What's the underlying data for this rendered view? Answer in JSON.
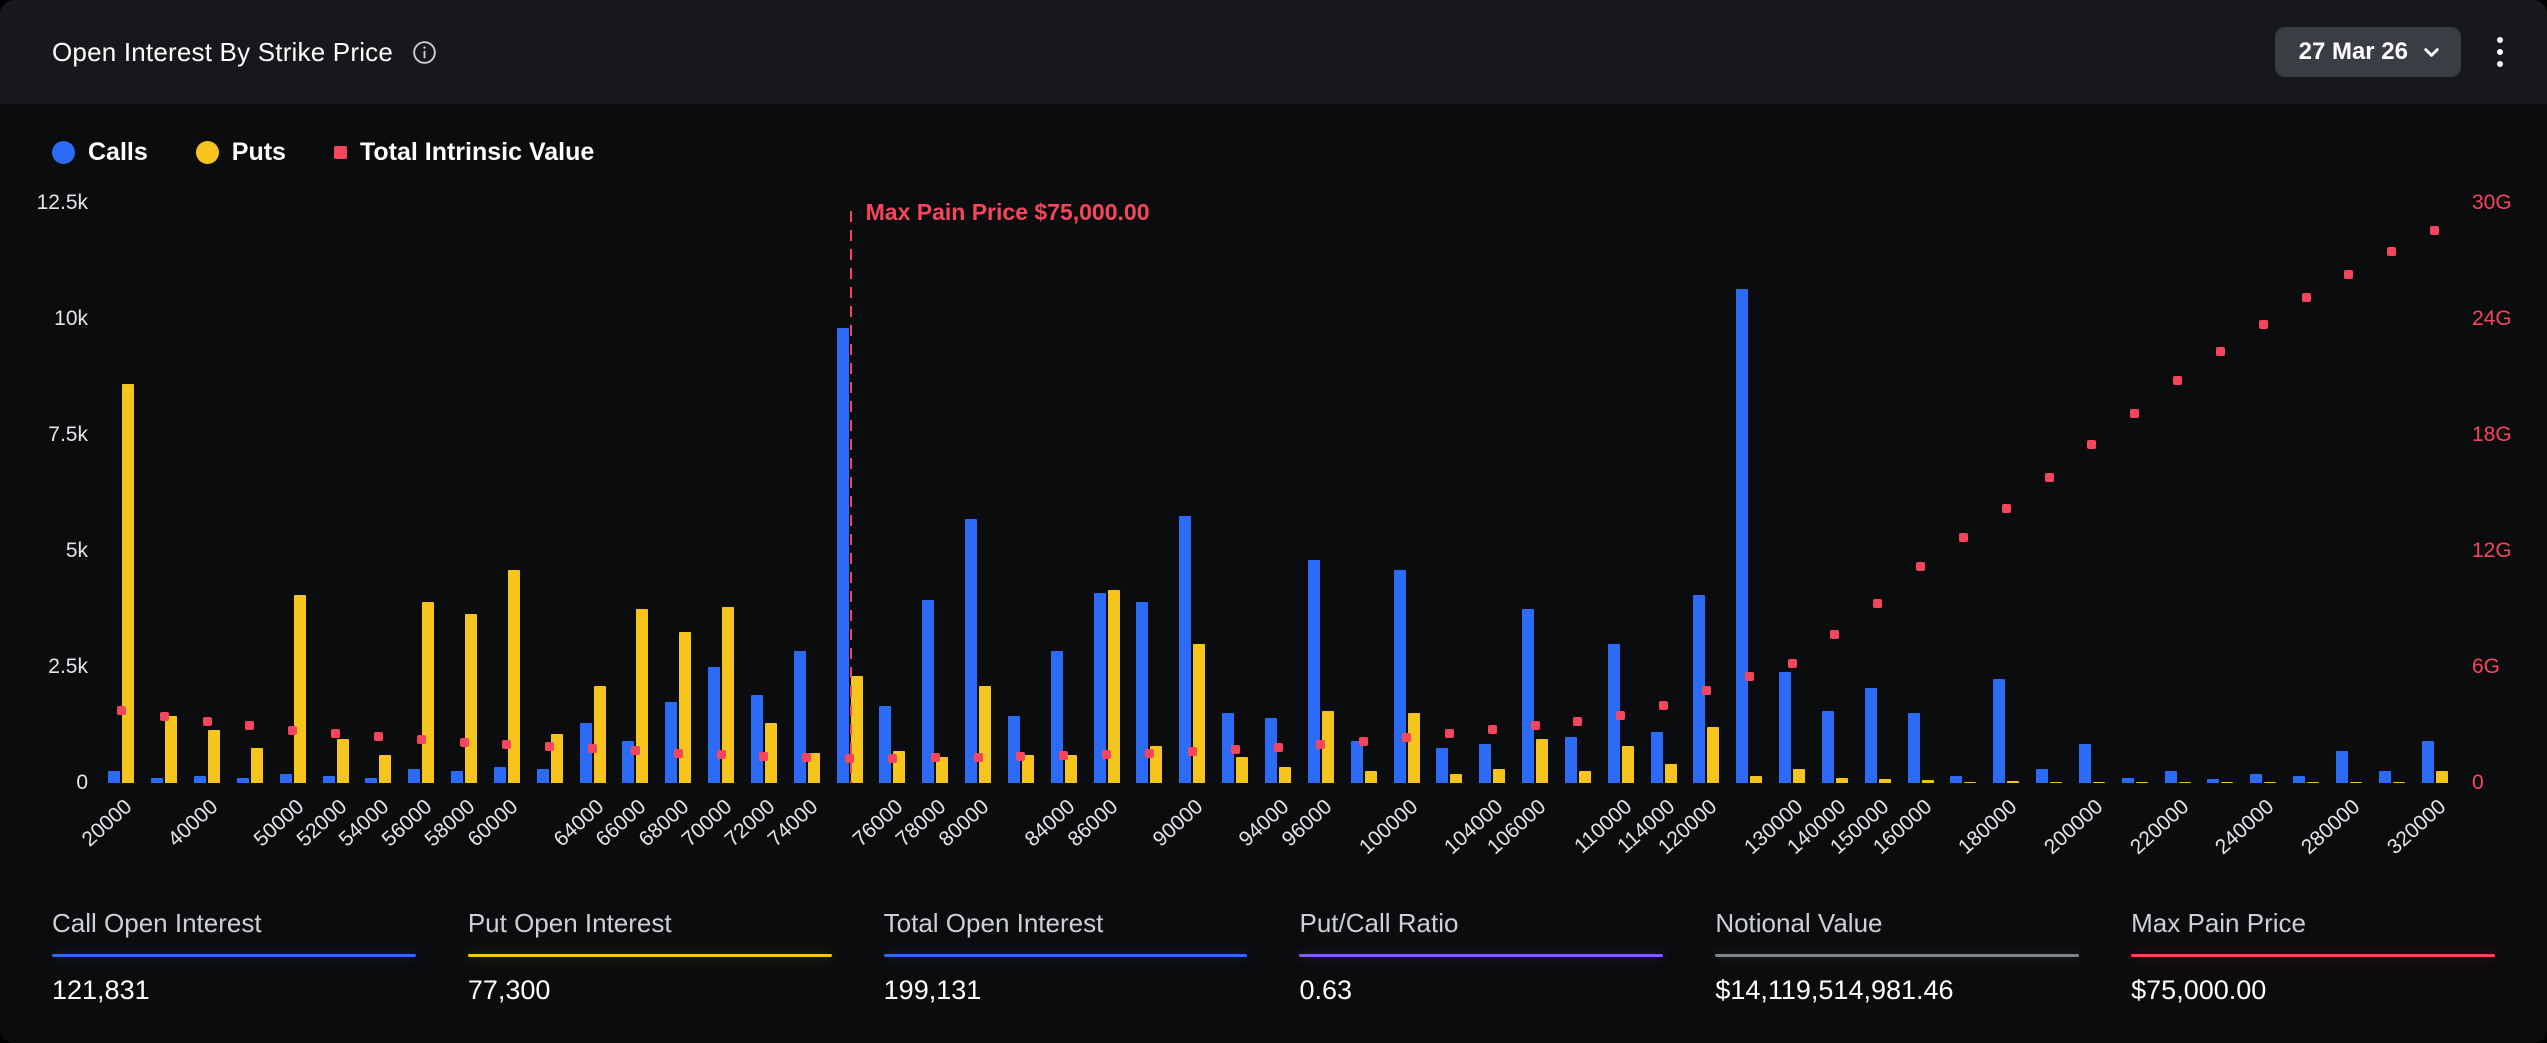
{
  "header": {
    "title": "Open Interest By Strike Price",
    "expiry_selector": "27 Mar 26"
  },
  "legend": [
    {
      "label": "Calls",
      "color": "#2C6BF6"
    },
    {
      "label": "Puts",
      "color": "#F5C51D"
    },
    {
      "label": "Total Intrinsic Value",
      "color": "#F6465D"
    }
  ],
  "chart_data": {
    "type": "bar",
    "title": "Open Interest By Strike Price",
    "series_names": [
      "Calls",
      "Puts",
      "Total Intrinsic Value"
    ],
    "left_axis": {
      "ticks": [
        "0",
        "2.5k",
        "5k",
        "7.5k",
        "10k",
        "12.5k"
      ],
      "range": [
        0,
        12500
      ]
    },
    "right_axis": {
      "ticks": [
        "0",
        "6G",
        "12G",
        "18G",
        "24G",
        "30G"
      ],
      "range_g": [
        0,
        30
      ],
      "color": "#F6465D"
    },
    "max_pain": {
      "strike": 75000,
      "label": "Max Pain Price $75,000.00"
    },
    "x_labels": [
      "20000",
      "40000",
      "50000",
      "52000",
      "54000",
      "56000",
      "58000",
      "60000",
      "64000",
      "66000",
      "68000",
      "70000",
      "72000",
      "74000",
      "76000",
      "78000",
      "80000",
      "84000",
      "86000",
      "90000",
      "94000",
      "96000",
      "100000",
      "104000",
      "106000",
      "110000",
      "114000",
      "120000",
      "130000",
      "140000",
      "150000",
      "160000",
      "180000",
      "200000",
      "220000",
      "240000",
      "280000",
      "320000"
    ],
    "strikes": [
      {
        "strike": 20000,
        "calls": 250,
        "puts": 8600,
        "intrinsic_g": 3.75
      },
      {
        "strike": 30000,
        "calls": 100,
        "puts": 1450,
        "intrinsic_g": 3.45
      },
      {
        "strike": 40000,
        "calls": 150,
        "puts": 1150,
        "intrinsic_g": 3.2
      },
      {
        "strike": 45000,
        "calls": 100,
        "puts": 750,
        "intrinsic_g": 2.95
      },
      {
        "strike": 50000,
        "calls": 200,
        "puts": 4050,
        "intrinsic_g": 2.7
      },
      {
        "strike": 52000,
        "calls": 150,
        "puts": 950,
        "intrinsic_g": 2.55
      },
      {
        "strike": 54000,
        "calls": 100,
        "puts": 600,
        "intrinsic_g": 2.4
      },
      {
        "strike": 56000,
        "calls": 300,
        "puts": 3900,
        "intrinsic_g": 2.25
      },
      {
        "strike": 58000,
        "calls": 250,
        "puts": 3650,
        "intrinsic_g": 2.1
      },
      {
        "strike": 60000,
        "calls": 350,
        "puts": 4600,
        "intrinsic_g": 2.0
      },
      {
        "strike": 62000,
        "calls": 300,
        "puts": 1050,
        "intrinsic_g": 1.9
      },
      {
        "strike": 64000,
        "calls": 1300,
        "puts": 2100,
        "intrinsic_g": 1.8
      },
      {
        "strike": 66000,
        "calls": 900,
        "puts": 3750,
        "intrinsic_g": 1.7
      },
      {
        "strike": 68000,
        "calls": 1750,
        "puts": 3250,
        "intrinsic_g": 1.55
      },
      {
        "strike": 70000,
        "calls": 2500,
        "puts": 3800,
        "intrinsic_g": 1.45
      },
      {
        "strike": 72000,
        "calls": 1900,
        "puts": 1300,
        "intrinsic_g": 1.35
      },
      {
        "strike": 74000,
        "calls": 2850,
        "puts": 650,
        "intrinsic_g": 1.3
      },
      {
        "strike": 75000,
        "calls": 9800,
        "puts": 2300,
        "intrinsic_g": 1.25
      },
      {
        "strike": 76000,
        "calls": 1650,
        "puts": 700,
        "intrinsic_g": 1.25
      },
      {
        "strike": 78000,
        "calls": 3950,
        "puts": 550,
        "intrinsic_g": 1.3
      },
      {
        "strike": 80000,
        "calls": 5700,
        "puts": 2100,
        "intrinsic_g": 1.3
      },
      {
        "strike": 82000,
        "calls": 1450,
        "puts": 600,
        "intrinsic_g": 1.35
      },
      {
        "strike": 84000,
        "calls": 2850,
        "puts": 600,
        "intrinsic_g": 1.4
      },
      {
        "strike": 86000,
        "calls": 4100,
        "puts": 4150,
        "intrinsic_g": 1.5
      },
      {
        "strike": 88000,
        "calls": 3900,
        "puts": 800,
        "intrinsic_g": 1.55
      },
      {
        "strike": 90000,
        "calls": 5750,
        "puts": 3000,
        "intrinsic_g": 1.65
      },
      {
        "strike": 92000,
        "calls": 1500,
        "puts": 550,
        "intrinsic_g": 1.75
      },
      {
        "strike": 94000,
        "calls": 1400,
        "puts": 350,
        "intrinsic_g": 1.85
      },
      {
        "strike": 96000,
        "calls": 4800,
        "puts": 1550,
        "intrinsic_g": 2.0
      },
      {
        "strike": 98000,
        "calls": 900,
        "puts": 250,
        "intrinsic_g": 2.15
      },
      {
        "strike": 100000,
        "calls": 4600,
        "puts": 1500,
        "intrinsic_g": 2.35
      },
      {
        "strike": 102000,
        "calls": 750,
        "puts": 200,
        "intrinsic_g": 2.55
      },
      {
        "strike": 104000,
        "calls": 850,
        "puts": 300,
        "intrinsic_g": 2.75
      },
      {
        "strike": 106000,
        "calls": 3750,
        "puts": 950,
        "intrinsic_g": 2.95
      },
      {
        "strike": 108000,
        "calls": 1000,
        "puts": 250,
        "intrinsic_g": 3.2
      },
      {
        "strike": 110000,
        "calls": 3000,
        "puts": 800,
        "intrinsic_g": 3.5
      },
      {
        "strike": 114000,
        "calls": 1100,
        "puts": 400,
        "intrinsic_g": 4.0
      },
      {
        "strike": 120000,
        "calls": 4050,
        "puts": 1200,
        "intrinsic_g": 4.8
      },
      {
        "strike": 125000,
        "calls": 10650,
        "puts": 150,
        "intrinsic_g": 5.5
      },
      {
        "strike": 130000,
        "calls": 2400,
        "puts": 300,
        "intrinsic_g": 6.2
      },
      {
        "strike": 140000,
        "calls": 1550,
        "puts": 100,
        "intrinsic_g": 7.7
      },
      {
        "strike": 150000,
        "calls": 2050,
        "puts": 80,
        "intrinsic_g": 9.3
      },
      {
        "strike": 160000,
        "calls": 1500,
        "puts": 60,
        "intrinsic_g": 11.2
      },
      {
        "strike": 170000,
        "calls": 150,
        "puts": 10,
        "intrinsic_g": 12.7
      },
      {
        "strike": 180000,
        "calls": 2250,
        "puts": 50,
        "intrinsic_g": 14.2
      },
      {
        "strike": 190000,
        "calls": 300,
        "puts": 10,
        "intrinsic_g": 15.8
      },
      {
        "strike": 200000,
        "calls": 850,
        "puts": 30,
        "intrinsic_g": 17.5
      },
      {
        "strike": 210000,
        "calls": 100,
        "puts": 5,
        "intrinsic_g": 19.1
      },
      {
        "strike": 220000,
        "calls": 250,
        "puts": 20,
        "intrinsic_g": 20.8
      },
      {
        "strike": 230000,
        "calls": 80,
        "puts": 5,
        "intrinsic_g": 22.3
      },
      {
        "strike": 240000,
        "calls": 200,
        "puts": 10,
        "intrinsic_g": 23.7
      },
      {
        "strike": 260000,
        "calls": 150,
        "puts": 5,
        "intrinsic_g": 25.1
      },
      {
        "strike": 280000,
        "calls": 700,
        "puts": 10,
        "intrinsic_g": 26.3
      },
      {
        "strike": 300000,
        "calls": 250,
        "puts": 10,
        "intrinsic_g": 27.5
      },
      {
        "strike": 320000,
        "calls": 900,
        "puts": 250,
        "intrinsic_g": 28.6
      }
    ]
  },
  "stats": [
    {
      "label": "Call Open Interest",
      "value": "121,831",
      "accent": "#2C6BF6"
    },
    {
      "label": "Put Open Interest",
      "value": "77,300",
      "accent": "#F5C51D"
    },
    {
      "label": "Total Open Interest",
      "value": "199,131",
      "accent": "#2C6BF6"
    },
    {
      "label": "Put/Call Ratio",
      "value": "0.63",
      "accent": "#875CF5"
    },
    {
      "label": "Notional Value",
      "value": "$14,119,514,981.46",
      "accent": "#80858D"
    },
    {
      "label": "Max Pain Price",
      "value": "$75,000.00",
      "accent": "#F6465D"
    }
  ]
}
